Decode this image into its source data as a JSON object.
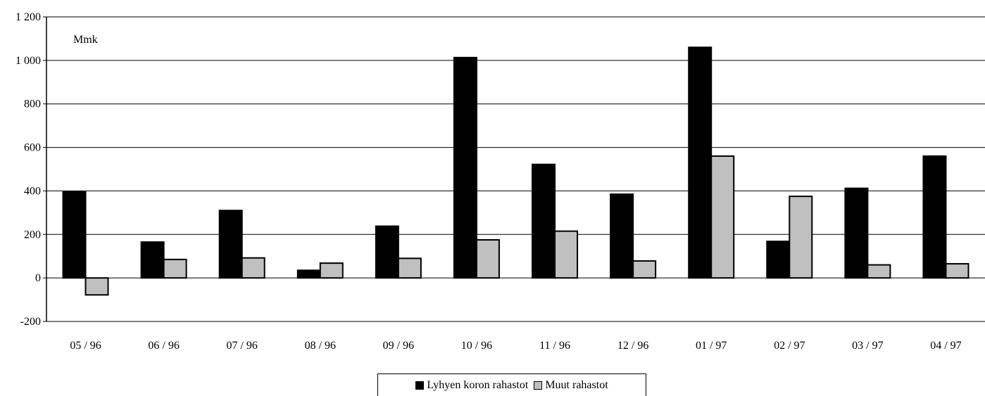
{
  "chart_data": {
    "type": "bar",
    "unit_label": "Mmk",
    "categories": [
      "05 / 96",
      "06 / 96",
      "07 / 96",
      "08 / 96",
      "09 / 96",
      "10 / 96",
      "11 / 96",
      "12 / 96",
      "01 / 97",
      "02 / 97",
      "03 / 97",
      "04 / 97"
    ],
    "series": [
      {
        "name": "Lyhyen koron rahastot",
        "color": "#000000",
        "values": [
          395,
          165,
          310,
          35,
          238,
          1013,
          522,
          385,
          1060,
          168,
          412,
          560
        ]
      },
      {
        "name": "Muut rahastot",
        "color": "#c0c0c0",
        "values": [
          -78,
          85,
          92,
          68,
          90,
          175,
          215,
          78,
          560,
          375,
          60,
          65
        ]
      }
    ],
    "ylim": [
      -200,
      1200
    ],
    "yticks": [
      -200,
      0,
      200,
      400,
      600,
      800,
      1000,
      1200
    ],
    "ytick_labels": [
      "-200",
      "0",
      "200",
      "400",
      "600",
      "800",
      "1 000",
      "1 200"
    ],
    "grid": true,
    "legend_position": "bottom"
  }
}
